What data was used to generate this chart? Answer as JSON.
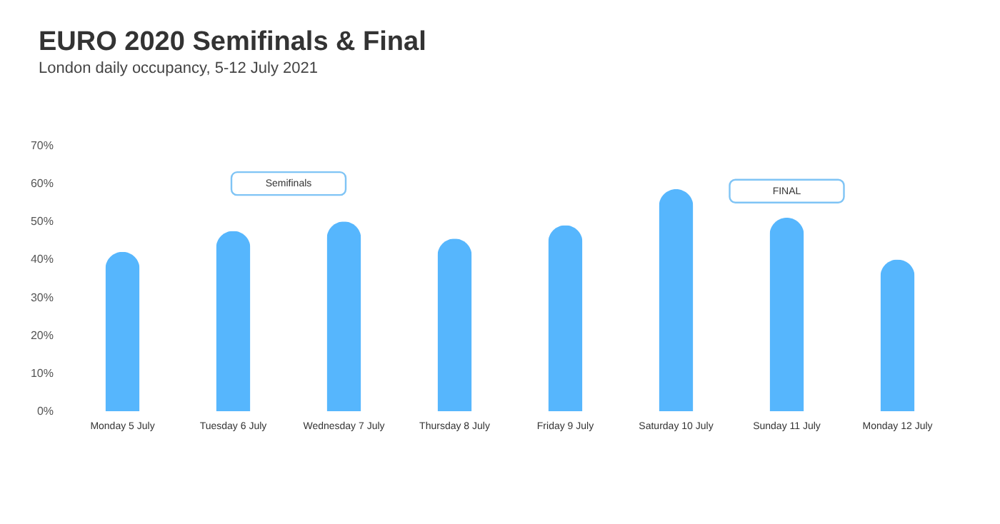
{
  "chart_data": {
    "type": "bar",
    "title": "EURO 2020 Semifinals & Final",
    "subtitle": "London daily occupancy, 5-12 July 2021",
    "categories": [
      "Monday 5 July",
      "Tuesday 6 July",
      "Wednesday 7 July",
      "Thursday 8 July",
      "Friday 9 July",
      "Saturday 10 July",
      "Sunday 11 July",
      "Monday 12 July"
    ],
    "values": [
      42,
      47.5,
      50,
      45.5,
      49,
      58.5,
      51,
      40
    ],
    "color": "#56b6fd",
    "ylim": [
      0,
      70
    ],
    "yticks": [
      {
        "value": 0,
        "label": "0%"
      },
      {
        "value": 10,
        "label": "10%"
      },
      {
        "value": 20,
        "label": "20%"
      },
      {
        "value": 30,
        "label": "30%"
      },
      {
        "value": 40,
        "label": "40%"
      },
      {
        "value": 50,
        "label": "50%"
      },
      {
        "value": 60,
        "label": "60%"
      },
      {
        "value": 70,
        "label": "70%"
      }
    ],
    "grid": false,
    "annotations": [
      "Semifinals",
      "FINAL"
    ]
  }
}
